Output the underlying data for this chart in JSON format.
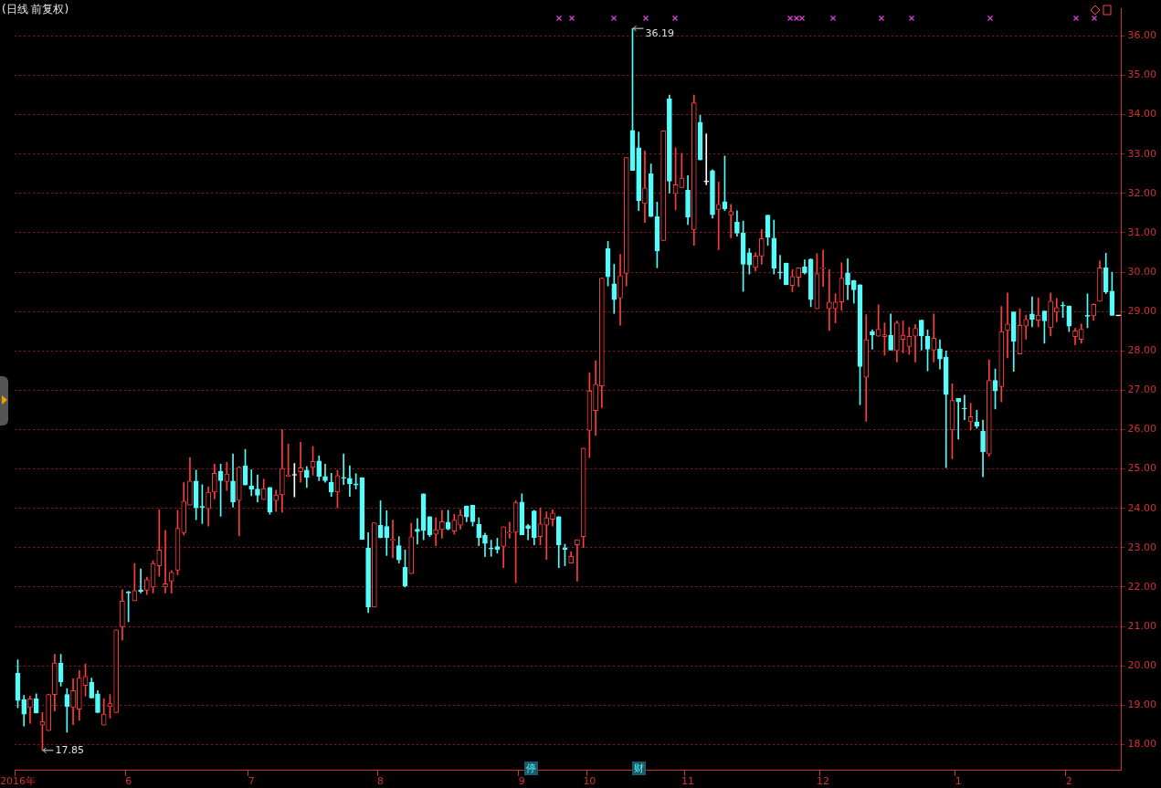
{
  "chart_data": {
    "type": "candlestick",
    "title": "(日线 前复权)",
    "categories": [
      "2016年",
      null,
      null,
      null,
      null,
      null,
      null,
      null,
      null,
      null,
      null,
      null,
      null,
      null,
      null,
      null,
      null,
      null,
      "6",
      null,
      null,
      null,
      null,
      null,
      null,
      null,
      null,
      null,
      null,
      null,
      null,
      null,
      null,
      null,
      null,
      null,
      null,
      null,
      "7",
      null,
      null,
      null,
      null,
      null,
      null,
      null,
      null,
      null,
      null,
      null,
      null,
      null,
      null,
      null,
      null,
      null,
      null,
      null,
      null,
      "8",
      null,
      null,
      null,
      null,
      null,
      null,
      null,
      null,
      null,
      null,
      null,
      null,
      null,
      null,
      null,
      null,
      null,
      null,
      null,
      null,
      null,
      null,
      "9",
      null,
      null,
      null,
      null,
      null,
      null,
      null,
      null,
      null,
      null,
      "10",
      null,
      null,
      null,
      null,
      null,
      null,
      null,
      null,
      null,
      null,
      null,
      null,
      null,
      null,
      null,
      "11",
      null,
      null,
      null,
      null,
      null,
      null,
      null,
      null,
      null,
      null,
      null,
      null,
      null,
      null,
      null,
      null,
      null,
      null,
      null,
      null,
      null,
      "12",
      null,
      null,
      null,
      null,
      null,
      null,
      null,
      null,
      null,
      null,
      null,
      null,
      null,
      null,
      null,
      null,
      null,
      null,
      null,
      null,
      null,
      "1",
      null,
      null,
      null,
      null,
      null,
      null,
      null,
      null,
      null,
      null,
      null,
      null,
      null,
      null,
      null,
      null,
      null,
      "2",
      null,
      null,
      null,
      null,
      null,
      null,
      null,
      null
    ],
    "ohlc": [
      [
        19.81,
        20.15,
        18.93,
        19.12
      ],
      [
        19.14,
        19.25,
        18.47,
        18.77
      ],
      [
        18.94,
        19.23,
        18.54,
        19.16
      ],
      [
        19.16,
        19.29,
        18.8,
        18.8
      ],
      [
        18.49,
        18.81,
        17.85,
        18.58
      ],
      [
        18.35,
        19.27,
        18.35,
        19.27
      ],
      [
        19.27,
        20.29,
        18.85,
        20.07
      ],
      [
        20.07,
        20.29,
        19.48,
        19.59
      ],
      [
        19.27,
        19.42,
        18.31,
        18.96
      ],
      [
        18.94,
        19.67,
        18.5,
        19.37
      ],
      [
        18.9,
        19.88,
        18.62,
        19.69
      ],
      [
        19.5,
        20.05,
        19.23,
        19.73
      ],
      [
        19.58,
        19.69,
        19.18,
        19.18
      ],
      [
        19.29,
        19.37,
        18.81,
        18.81
      ],
      [
        18.49,
        19.16,
        18.49,
        18.77
      ],
      [
        18.96,
        19.27,
        18.67,
        19.04
      ],
      [
        18.81,
        20.91,
        18.81,
        20.91
      ],
      [
        20.99,
        21.93,
        20.65,
        21.64
      ],
      [
        21.87,
        21.89,
        21.12,
        21.85
      ],
      [
        21.65,
        22.6,
        21.65,
        21.91
      ],
      [
        21.93,
        22.46,
        21.85,
        21.89
      ],
      [
        21.92,
        22.25,
        21.81,
        22.19
      ],
      [
        22.0,
        22.67,
        21.85,
        22.6
      ],
      [
        22.54,
        23.97,
        22.27,
        22.94
      ],
      [
        22.0,
        23.44,
        21.85,
        22.08
      ],
      [
        22.15,
        22.42,
        21.85,
        22.37
      ],
      [
        22.43,
        23.95,
        22.31,
        23.49
      ],
      [
        23.38,
        24.65,
        23.32,
        24.18
      ],
      [
        24.08,
        25.29,
        24.08,
        24.69
      ],
      [
        24.69,
        24.97,
        23.71,
        24.01
      ],
      [
        24.05,
        24.6,
        23.61,
        24.02
      ],
      [
        23.99,
        24.55,
        23.55,
        24.41
      ],
      [
        24.41,
        25.12,
        24.24,
        24.89
      ],
      [
        24.94,
        25.12,
        23.8,
        24.7
      ],
      [
        24.68,
        25.17,
        24.45,
        24.87
      ],
      [
        24.69,
        25.38,
        24.03,
        24.16
      ],
      [
        24.2,
        25.06,
        23.3,
        25.04
      ],
      [
        25.08,
        25.5,
        24.59,
        24.59
      ],
      [
        24.57,
        24.98,
        24.32,
        24.49
      ],
      [
        24.49,
        24.85,
        24.16,
        24.33
      ],
      [
        24.22,
        24.74,
        24.22,
        24.5
      ],
      [
        24.53,
        24.53,
        23.85,
        23.9
      ],
      [
        24.2,
        24.46,
        23.92,
        24.34
      ],
      [
        24.34,
        26.0,
        23.9,
        25.01
      ],
      [
        24.81,
        25.63,
        24.81,
        24.85
      ],
      [
        24.84,
        25.14,
        24.29,
        24.84
      ],
      [
        24.93,
        25.68,
        24.66,
        25.03
      ],
      [
        24.97,
        25.06,
        24.53,
        24.79
      ],
      [
        25.04,
        25.57,
        24.84,
        25.19
      ],
      [
        25.2,
        25.33,
        24.7,
        24.81
      ],
      [
        24.81,
        25.12,
        24.66,
        24.7
      ],
      [
        24.66,
        24.89,
        24.3,
        24.41
      ],
      [
        24.41,
        24.97,
        24.01,
        24.83
      ],
      [
        24.78,
        25.38,
        24.6,
        24.76
      ],
      [
        24.76,
        25.08,
        24.3,
        24.62
      ],
      [
        24.62,
        24.88,
        24.49,
        24.59
      ],
      [
        24.78,
        24.78,
        23.21,
        23.21
      ],
      [
        22.99,
        23.38,
        21.35,
        21.49
      ],
      [
        21.49,
        23.63,
        21.49,
        23.63
      ],
      [
        23.57,
        24.19,
        23.25,
        23.25
      ],
      [
        23.54,
        23.94,
        22.8,
        23.25
      ],
      [
        23.19,
        23.7,
        22.74,
        23.2
      ],
      [
        23.05,
        23.28,
        22.61,
        22.69
      ],
      [
        22.5,
        22.94,
        22.0,
        22.03
      ],
      [
        22.34,
        23.62,
        22.34,
        23.28
      ],
      [
        23.47,
        23.74,
        23.09,
        23.41
      ],
      [
        24.37,
        24.37,
        23.2,
        23.43
      ],
      [
        23.79,
        23.79,
        23.28,
        23.32
      ],
      [
        23.34,
        23.76,
        23.05,
        23.46
      ],
      [
        23.46,
        23.95,
        23.24,
        23.66
      ],
      [
        23.65,
        23.95,
        23.45,
        23.47
      ],
      [
        23.42,
        23.85,
        23.34,
        23.7
      ],
      [
        23.57,
        23.97,
        23.47,
        23.83
      ],
      [
        24.06,
        24.06,
        23.66,
        23.78
      ],
      [
        24.08,
        24.08,
        23.55,
        23.66
      ],
      [
        23.59,
        23.76,
        23.05,
        23.25
      ],
      [
        23.31,
        23.37,
        22.77,
        23.11
      ],
      [
        22.98,
        23.19,
        22.78,
        22.97
      ],
      [
        23.03,
        23.24,
        22.86,
        22.95
      ],
      [
        23.03,
        23.53,
        22.49,
        23.53
      ],
      [
        23.37,
        23.65,
        23.24,
        23.38
      ],
      [
        23.39,
        24.2,
        22.11,
        24.14
      ],
      [
        24.16,
        24.37,
        23.33,
        23.33
      ],
      [
        23.56,
        23.59,
        23.2,
        23.49
      ],
      [
        23.93,
        23.95,
        23.07,
        23.25
      ],
      [
        23.28,
        24.01,
        23.07,
        23.6
      ],
      [
        23.57,
        23.91,
        22.7,
        23.76
      ],
      [
        23.72,
        23.97,
        23.55,
        23.88
      ],
      [
        23.79,
        23.79,
        22.49,
        23.07
      ],
      [
        23.0,
        23.09,
        22.54,
        22.95
      ],
      [
        22.61,
        22.9,
        22.61,
        22.78
      ],
      [
        23.07,
        23.2,
        22.15,
        23.2
      ],
      [
        23.28,
        25.53,
        23.0,
        25.53
      ],
      [
        25.98,
        27.44,
        25.29,
        26.98
      ],
      [
        26.48,
        27.75,
        25.85,
        27.15
      ],
      [
        27.11,
        29.85,
        26.56,
        29.85
      ],
      [
        30.6,
        30.78,
        29.65,
        29.88
      ],
      [
        29.7,
        30.2,
        28.95,
        29.3
      ],
      [
        29.34,
        30.45,
        28.65,
        29.91
      ],
      [
        29.97,
        32.91,
        29.65,
        32.91
      ],
      [
        33.6,
        36.19,
        32.58,
        32.58
      ],
      [
        33.16,
        33.56,
        31.56,
        31.81
      ],
      [
        31.74,
        33.08,
        31.26,
        32.14
      ],
      [
        32.5,
        32.75,
        31.41,
        31.41
      ],
      [
        31.41,
        31.78,
        30.11,
        30.54
      ],
      [
        30.8,
        33.59,
        30.8,
        33.59
      ],
      [
        34.4,
        34.5,
        32.01,
        32.31
      ],
      [
        31.99,
        33.16,
        31.58,
        32.22
      ],
      [
        32.15,
        33.02,
        32.15,
        32.39
      ],
      [
        32.08,
        32.45,
        31.21,
        31.4
      ],
      [
        31.08,
        34.5,
        30.68,
        34.3
      ],
      [
        33.81,
        33.98,
        32.85,
        32.85
      ],
      [
        32.29,
        33.51,
        32.22,
        32.29
      ],
      [
        32.58,
        32.6,
        31.37,
        31.46
      ],
      [
        31.59,
        32.29,
        30.57,
        31.72
      ],
      [
        31.79,
        32.95,
        31.56,
        31.6
      ],
      [
        31.45,
        31.72,
        30.87,
        31.54
      ],
      [
        31.27,
        31.56,
        30.91,
        30.99
      ],
      [
        30.99,
        31.3,
        29.51,
        30.2
      ],
      [
        30.49,
        30.6,
        29.95,
        30.18
      ],
      [
        30.12,
        30.49,
        30.03,
        30.41
      ],
      [
        30.41,
        31.08,
        30.2,
        30.85
      ],
      [
        31.45,
        31.45,
        30.68,
        30.89
      ],
      [
        30.86,
        31.32,
        29.95,
        30.1
      ],
      [
        29.99,
        30.43,
        29.83,
        29.98
      ],
      [
        30.23,
        30.23,
        29.68,
        29.68
      ],
      [
        29.66,
        30.06,
        29.5,
        29.89
      ],
      [
        29.87,
        30.11,
        29.63,
        30.11
      ],
      [
        30.14,
        30.31,
        29.95,
        29.98
      ],
      [
        30.33,
        30.34,
        29.12,
        29.3
      ],
      [
        29.07,
        30.47,
        29.07,
        29.96
      ],
      [
        30.09,
        30.56,
        29.63,
        30.1
      ],
      [
        29.07,
        30.06,
        28.52,
        29.24
      ],
      [
        29.07,
        29.45,
        28.71,
        29.24
      ],
      [
        29.24,
        30.24,
        29.03,
        29.85
      ],
      [
        29.98,
        30.34,
        29.3,
        29.68
      ],
      [
        29.79,
        29.79,
        29.21,
        29.55
      ],
      [
        29.68,
        29.68,
        26.63,
        27.6
      ],
      [
        27.33,
        28.92,
        26.21,
        28.28
      ],
      [
        28.49,
        28.53,
        28.04,
        28.4
      ],
      [
        28.37,
        29.17,
        28.37,
        28.55
      ],
      [
        28.36,
        28.71,
        27.89,
        28.41
      ],
      [
        28.4,
        28.94,
        28.02,
        28.02
      ],
      [
        28.0,
        28.76,
        27.72,
        28.71
      ],
      [
        28.29,
        28.76,
        27.95,
        28.4
      ],
      [
        28.11,
        28.6,
        27.91,
        28.37
      ],
      [
        28.37,
        28.67,
        27.72,
        28.57
      ],
      [
        28.78,
        28.78,
        28.02,
        28.38
      ],
      [
        28.37,
        28.53,
        27.49,
        28.04
      ],
      [
        28.02,
        28.94,
        27.72,
        28.32
      ],
      [
        28.05,
        28.28,
        27.54,
        27.79
      ],
      [
        27.84,
        28.0,
        25.03,
        26.89
      ],
      [
        25.99,
        27.16,
        25.26,
        26.74
      ],
      [
        26.79,
        26.79,
        25.76,
        26.7
      ],
      [
        26.53,
        26.87,
        26.25,
        26.52
      ],
      [
        26.2,
        26.67,
        25.99,
        26.33
      ],
      [
        26.19,
        26.49,
        26.03,
        26.09
      ],
      [
        25.96,
        26.24,
        24.8,
        25.44
      ],
      [
        25.38,
        27.77,
        25.32,
        27.25
      ],
      [
        27.25,
        27.54,
        26.52,
        26.98
      ],
      [
        27.09,
        29.13,
        26.7,
        28.49
      ],
      [
        28.52,
        29.47,
        27.82,
        28.68
      ],
      [
        28.99,
        28.99,
        27.48,
        28.24
      ],
      [
        27.92,
        29.07,
        27.92,
        28.65
      ],
      [
        28.63,
        28.91,
        28.3,
        28.8
      ],
      [
        28.94,
        29.37,
        28.61,
        28.8
      ],
      [
        28.78,
        29.35,
        28.61,
        28.91
      ],
      [
        29.01,
        29.01,
        28.19,
        28.76
      ],
      [
        28.59,
        29.47,
        28.38,
        29.26
      ],
      [
        28.98,
        29.33,
        28.74,
        29.1
      ],
      [
        29.15,
        29.24,
        28.85,
        29.14
      ],
      [
        29.14,
        29.14,
        28.49,
        28.63
      ],
      [
        28.36,
        28.57,
        28.15,
        28.51
      ],
      [
        28.29,
        28.68,
        28.19,
        28.55
      ],
      [
        28.89,
        29.45,
        28.59,
        28.88
      ],
      [
        28.89,
        29.2,
        28.78,
        29.18
      ],
      [
        29.26,
        30.28,
        29.26,
        30.11
      ],
      [
        30.11,
        30.48,
        29.45,
        29.5
      ],
      [
        29.52,
        30.0,
        28.9,
        28.9
      ],
      [
        28.89,
        28.89,
        28.89,
        28.89
      ]
    ],
    "colors": [
      "#54fcfc",
      "#54fcfc",
      "#ff3c3c",
      "#54fcfc",
      "#ff3c3c",
      "#ff3c3c",
      "#ff3c3c",
      "#54fcfc",
      "#54fcfc",
      "#ff3c3c",
      "#ff3c3c",
      "#ff3c3c",
      "#54fcfc",
      "#54fcfc",
      "#ff3c3c",
      "#ff3c3c",
      "#ff3c3c",
      "#ff3c3c",
      "#54fcfc",
      "#ff3c3c",
      "#54fcfc",
      "#ff3c3c",
      "#ff3c3c",
      "#ff3c3c",
      "#ff3c3c",
      "#ff3c3c",
      "#ff3c3c",
      "#ff3c3c",
      "#ff3c3c",
      "#54fcfc",
      "#54fcfc",
      "#ff3c3c",
      "#ff3c3c",
      "#54fcfc",
      "#ff3c3c",
      "#54fcfc",
      "#ff3c3c",
      "#54fcfc",
      "#54fcfc",
      "#54fcfc",
      "#ff3c3c",
      "#54fcfc",
      "#ff3c3c",
      "#ff3c3c",
      "#ff3c3c",
      "#ffffff",
      "#ff3c3c",
      "#54fcfc",
      "#ff3c3c",
      "#54fcfc",
      "#54fcfc",
      "#54fcfc",
      "#ff3c3c",
      "#54fcfc",
      "#54fcfc",
      "#54fcfc",
      "#54fcfc",
      "#54fcfc",
      "#ff3c3c",
      "#54fcfc",
      "#54fcfc",
      "#ff3c3c",
      "#54fcfc",
      "#54fcfc",
      "#ff3c3c",
      "#54fcfc",
      "#54fcfc",
      "#54fcfc",
      "#ff3c3c",
      "#ff3c3c",
      "#54fcfc",
      "#ff3c3c",
      "#ff3c3c",
      "#54fcfc",
      "#54fcfc",
      "#54fcfc",
      "#54fcfc",
      "#54fcfc",
      "#54fcfc",
      "#ff3c3c",
      "#ff3c3c",
      "#ff3c3c",
      "#54fcfc",
      "#54fcfc",
      "#54fcfc",
      "#ff3c3c",
      "#ff3c3c",
      "#ff3c3c",
      "#54fcfc",
      "#54fcfc",
      "#ff3c3c",
      "#ff3c3c",
      "#ff3c3c",
      "#ff3c3c",
      "#ff3c3c",
      "#ff3c3c",
      "#54fcfc",
      "#54fcfc",
      "#ff3c3c",
      "#ff3c3c",
      "#54fcfc",
      "#54fcfc",
      "#ff3c3c",
      "#54fcfc",
      "#54fcfc",
      "#ff3c3c",
      "#54fcfc",
      "#ff3c3c",
      "#ff3c3c",
      "#54fcfc",
      "#ff3c3c",
      "#54fcfc",
      "#ffffff",
      "#54fcfc",
      "#ff3c3c",
      "#54fcfc",
      "#ff3c3c",
      "#54fcfc",
      "#54fcfc",
      "#54fcfc",
      "#ff3c3c",
      "#ff3c3c",
      "#54fcfc",
      "#54fcfc",
      "#54fcfc",
      "#54fcfc",
      "#ff3c3c",
      "#ff3c3c",
      "#54fcfc",
      "#54fcfc",
      "#ff3c3c",
      "#ff3c3c",
      "#ff3c3c",
      "#ff3c3c",
      "#ff3c3c",
      "#54fcfc",
      "#54fcfc",
      "#54fcfc",
      "#ff3c3c",
      "#54fcfc",
      "#ff3c3c",
      "#ff3c3c",
      "#54fcfc",
      "#ff3c3c",
      "#ff3c3c",
      "#ff3c3c",
      "#ff3c3c",
      "#54fcfc",
      "#54fcfc",
      "#ff3c3c",
      "#54fcfc",
      "#54fcfc",
      "#ff3c3c",
      "#54fcfc",
      "#54fcfc",
      "#ff3c3c",
      "#54fcfc",
      "#54fcfc",
      "#ff3c3c",
      "#54fcfc",
      "#ff3c3c",
      "#ff3c3c",
      "#54fcfc",
      "#ff3c3c",
      "#ff3c3c",
      "#54fcfc",
      "#ff3c3c",
      "#54fcfc",
      "#ff3c3c",
      "#ff3c3c",
      "#54fcfc",
      "#54fcfc",
      "#ff3c3c",
      "#ff3c3c",
      "#54fcfc",
      "#ff3c3c",
      "#ff3c3c",
      "#54fcfc",
      "#54fcfc",
      "#ffffff"
    ],
    "ylim": [
      17.34,
      36.69
    ],
    "yticks": [
      {
        "value": 18,
        "label": "18.00"
      },
      {
        "value": 19,
        "label": "19.00"
      },
      {
        "value": 20,
        "label": "20.00"
      },
      {
        "value": 21,
        "label": "21.00"
      },
      {
        "value": 22,
        "label": "22.00"
      },
      {
        "value": 23,
        "label": "23.00"
      },
      {
        "value": 24,
        "label": "24.00"
      },
      {
        "value": 25,
        "label": "25.00"
      },
      {
        "value": 26,
        "label": "26.00"
      },
      {
        "value": 27,
        "label": "27.00"
      },
      {
        "value": 28,
        "label": "28.00"
      },
      {
        "value": 29,
        "label": "29.00"
      },
      {
        "value": 30,
        "label": "30.00"
      },
      {
        "value": 31,
        "label": "31.00"
      },
      {
        "value": 32,
        "label": "32.00"
      },
      {
        "value": 33,
        "label": "33.00"
      },
      {
        "value": 34,
        "label": "34.00"
      },
      {
        "value": 35,
        "label": "35.00"
      },
      {
        "value": 36,
        "label": "36.00"
      }
    ],
    "grid": "y",
    "annotations": [
      "36.19",
      "17.85",
      "停",
      "财"
    ]
  }
}
